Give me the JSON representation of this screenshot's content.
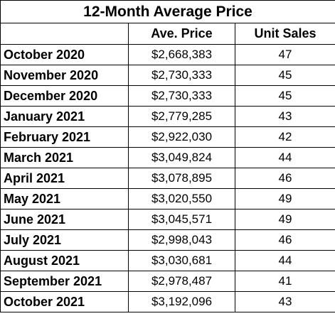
{
  "title": "12-Month Average Price",
  "headers": {
    "month": "",
    "price": "Ave. Price",
    "units": "Unit Sales"
  },
  "rows": [
    {
      "month": "October 2020",
      "price": "$2,668,383",
      "units": "47"
    },
    {
      "month": "November 2020",
      "price": "$2,730,333",
      "units": "45"
    },
    {
      "month": "December 2020",
      "price": "$2,730,333",
      "units": "45"
    },
    {
      "month": "January 2021",
      "price": "$2,779,285",
      "units": "43"
    },
    {
      "month": "February 2021",
      "price": "$2,922,030",
      "units": "42"
    },
    {
      "month": "March 2021",
      "price": "$3,049,824",
      "units": "44"
    },
    {
      "month": "April 2021",
      "price": "$3,078,895",
      "units": "46"
    },
    {
      "month": "May 2021",
      "price": "$3,020,550",
      "units": "49"
    },
    {
      "month": "June 2021",
      "price": "$3,045,571",
      "units": "49"
    },
    {
      "month": "July 2021",
      "price": "$2,998,043",
      "units": "46"
    },
    {
      "month": "August 2021",
      "price": "$3,030,681",
      "units": "44"
    },
    {
      "month": "September 2021",
      "price": "$2,978,487",
      "units": "41"
    },
    {
      "month": "October 2021",
      "price": "$3,192,096",
      "units": "43"
    }
  ]
}
